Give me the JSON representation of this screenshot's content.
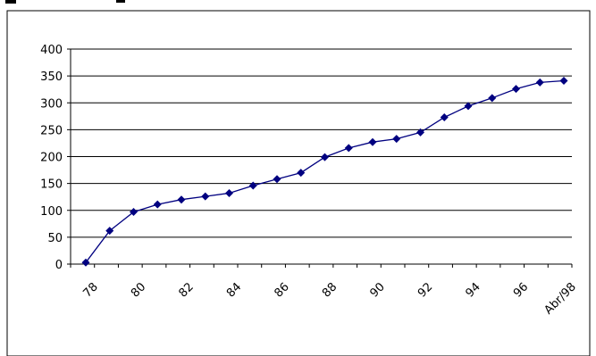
{
  "chart_data": {
    "type": "line",
    "title": "",
    "xlabel": "",
    "ylabel": "",
    "ylim": [
      0,
      400
    ],
    "y_ticks": [
      0,
      50,
      100,
      150,
      200,
      250,
      300,
      350,
      400
    ],
    "grid": true,
    "legend": "none",
    "x_tick_labels": [
      "78",
      "80",
      "82",
      "84",
      "86",
      "88",
      "90",
      "92",
      "94",
      "96",
      "Abr/98"
    ],
    "series": [
      {
        "color": "#000080",
        "values": [
          3,
          62,
          97,
          111,
          120,
          126,
          132,
          146,
          158,
          170,
          199,
          216,
          227,
          233,
          245,
          273,
          294,
          309,
          326,
          338,
          341
        ]
      }
    ]
  }
}
